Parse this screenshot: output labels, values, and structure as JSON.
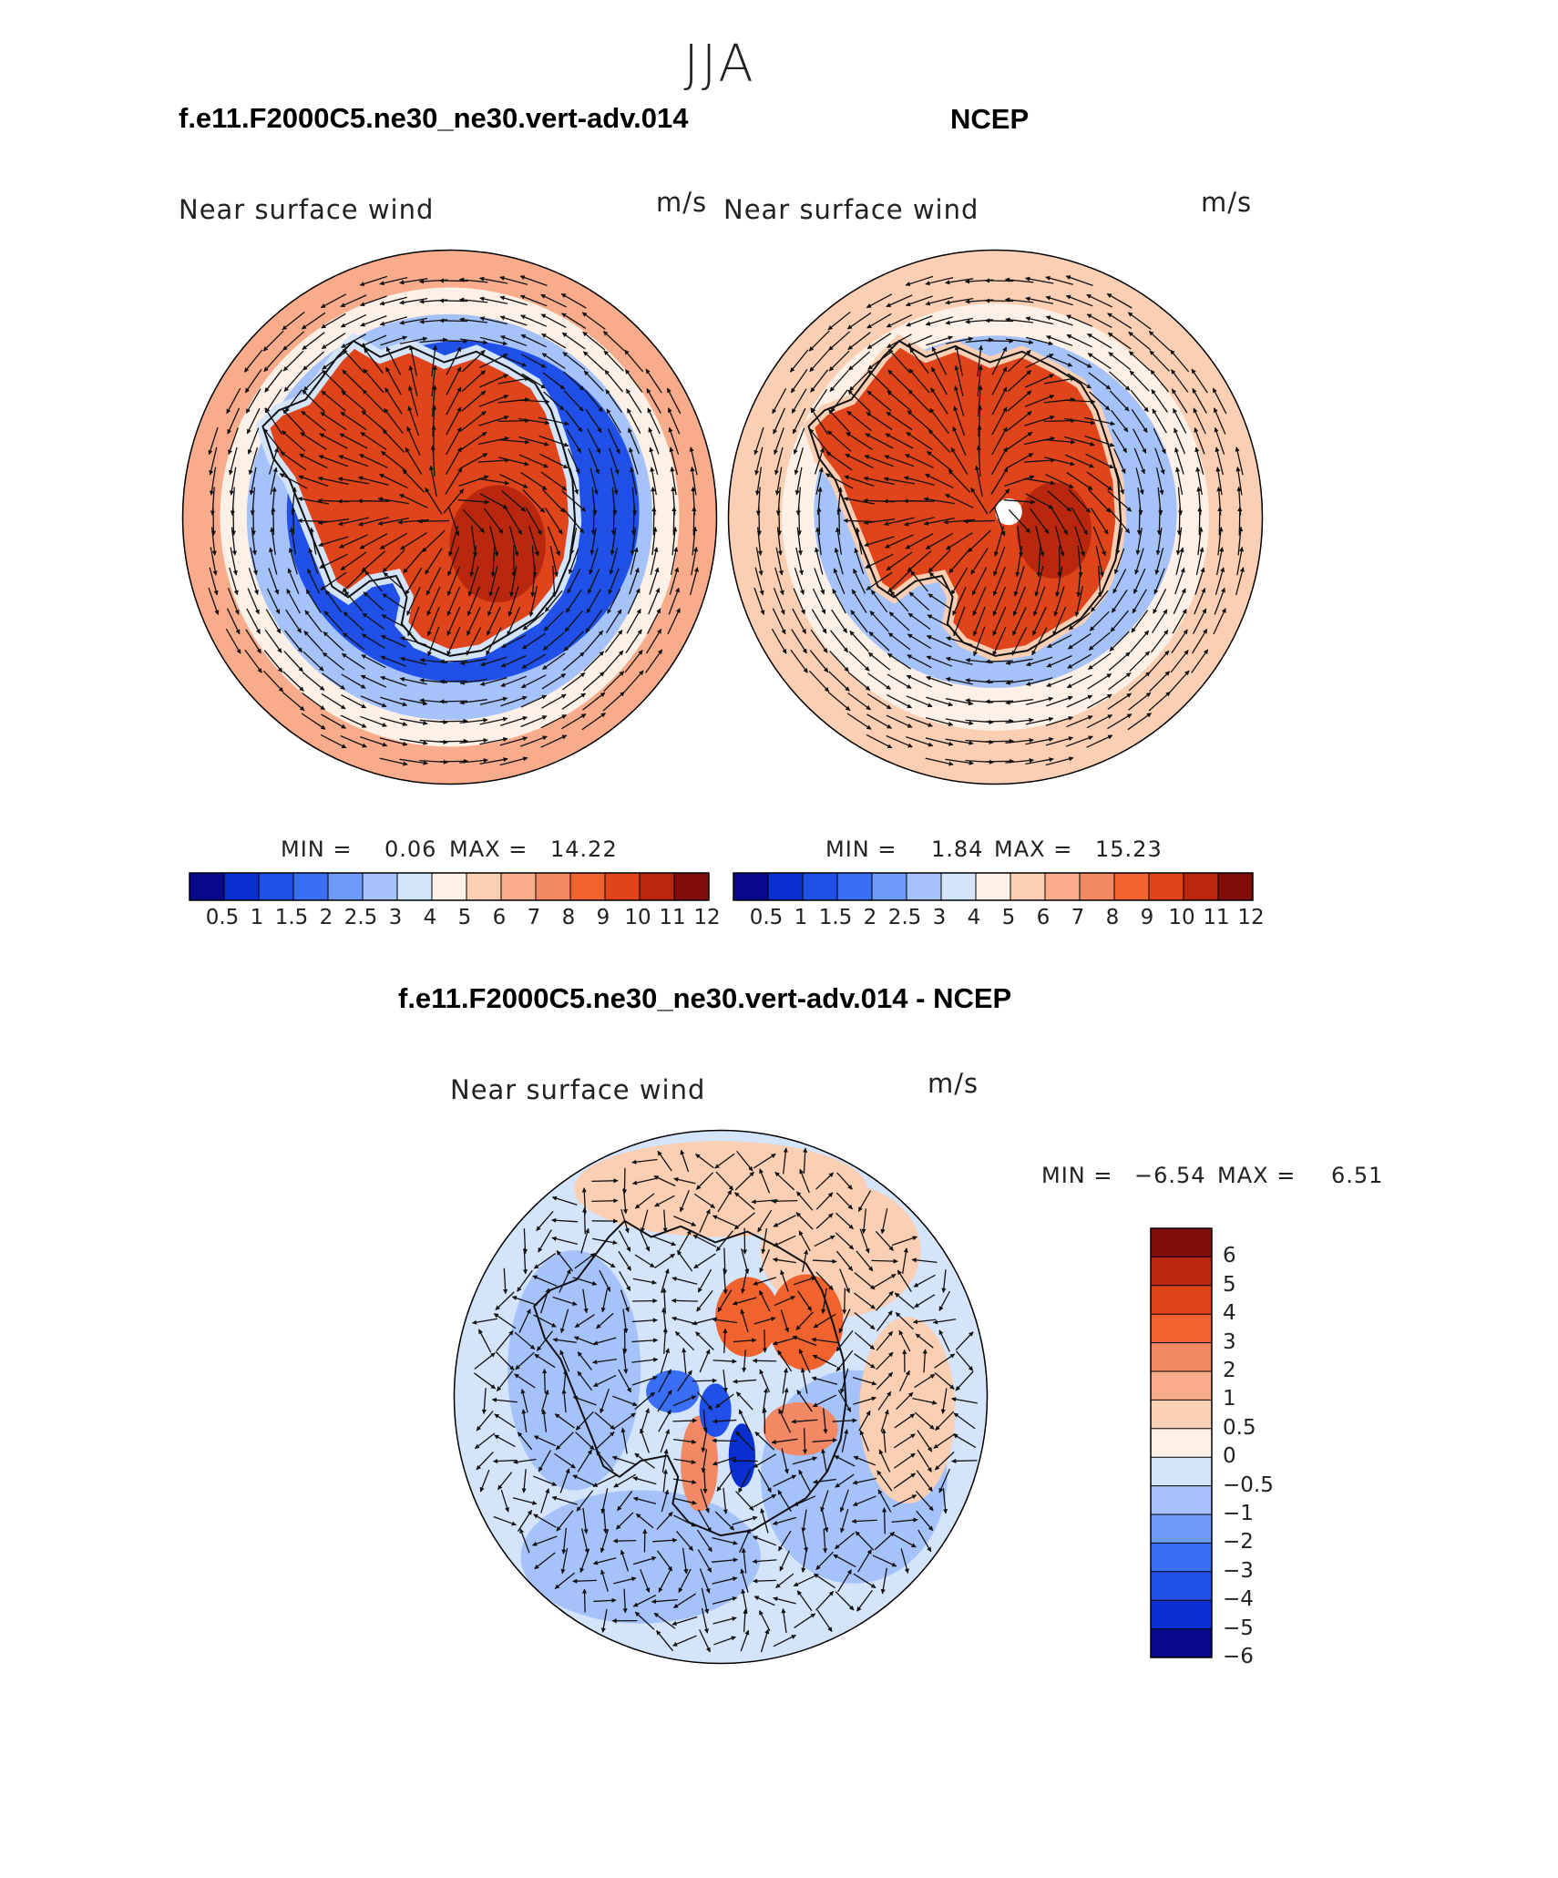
{
  "figure": {
    "season": "JJA",
    "colors": {
      "abs_scale": [
        "#08088c",
        "#0a2fd0",
        "#2050e8",
        "#3a6ff5",
        "#6e9af7",
        "#a5c2fa",
        "#d3e4fb",
        "#fdf0e6",
        "#fbcfb4",
        "#f8ac8c",
        "#f38864",
        "#f0632f",
        "#e0441a",
        "#b9280e",
        "#800d08"
      ],
      "diff_scale": [
        "#08088c",
        "#0a2fd0",
        "#2050e8",
        "#3a6ff5",
        "#6e9af7",
        "#a5c2fa",
        "#d3e4fb",
        "#fdf0e6",
        "#fbcfb4",
        "#f8ac8c",
        "#f38864",
        "#f0632f",
        "#e0441a",
        "#b9280e",
        "#800d08"
      ]
    },
    "panels": {
      "model": {
        "title": "f.e11.F2000C5.ne30_ne30.vert-adv.014",
        "variable": "Near surface wind",
        "units": "m/s",
        "min_label": "MIN =",
        "min_value": "0.06",
        "max_label": "MAX =",
        "max_value": "14.22",
        "ticks": [
          "0.5",
          "1",
          "1.5",
          "2",
          "2.5",
          "3",
          "4",
          "5",
          "6",
          "7",
          "8",
          "9",
          "10",
          "11",
          "12"
        ]
      },
      "obs": {
        "title": "NCEP",
        "variable": "Near surface wind",
        "units": "m/s",
        "min_label": "MIN =",
        "min_value": "1.84",
        "max_label": "MAX =",
        "max_value": "15.23",
        "ticks": [
          "0.5",
          "1",
          "1.5",
          "2",
          "2.5",
          "3",
          "4",
          "5",
          "6",
          "7",
          "8",
          "9",
          "10",
          "11",
          "12"
        ]
      },
      "diff": {
        "title": "f.e11.F2000C5.ne30_ne30.vert-adv.014 - NCEP",
        "variable": "Near surface wind",
        "units": "m/s",
        "min_label": "MIN =",
        "min_value": "−6.54",
        "max_label": "MAX =",
        "max_value": "6.51",
        "ticks": [
          "6",
          "5",
          "4",
          "3",
          "2",
          "1",
          "0.5",
          "0",
          "−0.5",
          "−1",
          "−2",
          "−3",
          "−4",
          "−5",
          "−6"
        ]
      }
    }
  }
}
